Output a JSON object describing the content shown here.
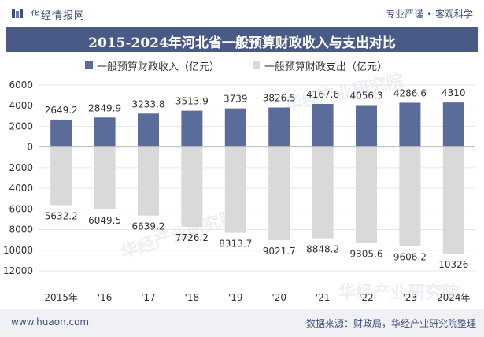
{
  "header": {
    "brand": "华经情报网",
    "tagline": "专业严谨 • 客观科学"
  },
  "chart_data": {
    "type": "bar",
    "title": "2015-2024年河北省一般预算财政收入与支出对比",
    "categories": [
      "2015年",
      "'16",
      "'17",
      "'18",
      "'19",
      "'20",
      "'21",
      "'22",
      "'23",
      "2024年"
    ],
    "series": [
      {
        "name": "一般预算财政收入（亿元）",
        "values": [
          2649.2,
          2849.9,
          3233.8,
          3513.9,
          3739,
          3826.5,
          4167.6,
          4056.3,
          4286.6,
          4310
        ],
        "value_labels": [
          "2649.2",
          "2849.9",
          "3233.8",
          "3513.9",
          "3739",
          "3826.5",
          "4167.6",
          "4056.3",
          "4286.6",
          "4310"
        ],
        "color": "#5a6d9a"
      },
      {
        "name": "一般预算财政支出（亿元）",
        "values": [
          -5632.2,
          -6049.5,
          -6639.2,
          -7726.2,
          -8313.7,
          -9021.7,
          -8848.2,
          -9305.6,
          -9606.2,
          -10326
        ],
        "value_labels": [
          "5632.2",
          "6049.5",
          "6639.2",
          "7726.2",
          "8313.7",
          "9021.7",
          "8848.2",
          "9305.6",
          "9606.2",
          "10326"
        ],
        "color": "#d9d9d9"
      }
    ],
    "ylim": [
      -12000,
      6000
    ],
    "yticks": [
      6000,
      4000,
      2000,
      0,
      -2000,
      -4000,
      -6000,
      -8000,
      -10000,
      -12000
    ],
    "ytick_labels": [
      "6000",
      "4000",
      "2000",
      "0",
      "2000",
      "4000",
      "6000",
      "8000",
      "10000",
      "12000"
    ],
    "grid": true,
    "legend_position": "top-center"
  },
  "footer": {
    "site": "www.huaon.com",
    "source": "数据来源：财政局，华经产业研究院整理"
  },
  "watermark": "华经产业研究院"
}
